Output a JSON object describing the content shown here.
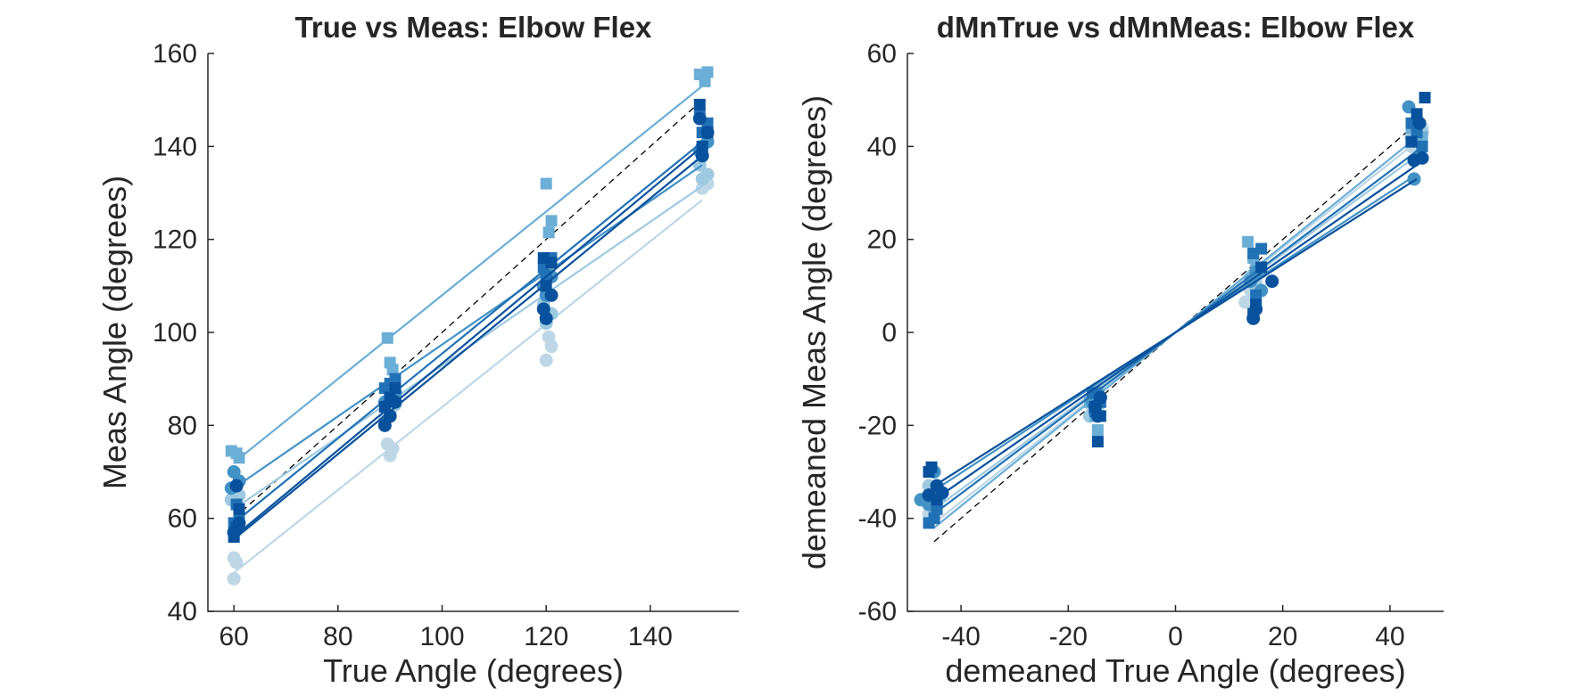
{
  "chart_data": [
    {
      "type": "scatter",
      "title": "True vs Meas: Elbow Flex",
      "xlabel": "True Angle (degrees)",
      "ylabel": "Meas Angle (degrees)",
      "xlim": [
        55,
        157
      ],
      "ylim": [
        40,
        160
      ],
      "xticks": [
        60,
        80,
        100,
        120,
        140
      ],
      "yticks": [
        40,
        60,
        80,
        100,
        120,
        140,
        160
      ],
      "grid": false,
      "reference_line": {
        "style": "dashed",
        "color": "#000000",
        "from": [
          60,
          60
        ],
        "to": [
          150,
          150
        ]
      },
      "series": [
        {
          "color": "#bdd7e7",
          "marker": "circle",
          "points": [
            [
              60,
              47
            ],
            [
              60.5,
              50.5
            ],
            [
              60,
              51.5
            ],
            [
              90,
              73.5
            ],
            [
              90.5,
              75
            ],
            [
              89.5,
              76
            ],
            [
              120,
              94
            ],
            [
              121,
              97
            ],
            [
              120.5,
              99
            ],
            [
              150,
              131
            ],
            [
              151,
              132
            ],
            [
              150.5,
              133
            ]
          ],
          "fit": [
            [
              60,
              48.3
            ],
            [
              150,
              128.5
            ]
          ]
        },
        {
          "color": "#9ecae1",
          "marker": "circle",
          "points": [
            [
              59.5,
              64
            ],
            [
              61,
              65
            ],
            [
              60,
              66
            ],
            [
              89,
              81
            ],
            [
              90,
              83
            ],
            [
              91,
              84.5
            ],
            [
              120,
              102
            ],
            [
              121,
              104
            ],
            [
              119.5,
              106
            ],
            [
              150,
              133
            ],
            [
              151,
              134
            ],
            [
              149.5,
              136
            ]
          ],
          "fit": [
            [
              60,
              62
            ],
            [
              150,
              131.5
            ]
          ]
        },
        {
          "color": "#6baed6",
          "marker": "square",
          "points": [
            [
              59.5,
              74.5
            ],
            [
              60.5,
              74
            ],
            [
              61,
              73
            ],
            [
              89.5,
              98.8
            ],
            [
              90,
              93.5
            ],
            [
              90.5,
              92
            ],
            [
              120,
              132
            ],
            [
              121,
              124
            ],
            [
              120.5,
              121.5
            ],
            [
              149.5,
              155.5
            ],
            [
              151,
              156
            ],
            [
              150.5,
              154
            ]
          ],
          "fit": [
            [
              60,
              72
            ],
            [
              150,
              153
            ]
          ]
        },
        {
          "color": "#4292c6",
          "marker": "circle",
          "points": [
            [
              60,
              70
            ],
            [
              61,
              68
            ],
            [
              59.5,
              66.5
            ],
            [
              89,
              85
            ],
            [
              90,
              86
            ],
            [
              91,
              87
            ],
            [
              120,
              108
            ],
            [
              119.5,
              110
            ],
            [
              121,
              112
            ],
            [
              150,
              140
            ],
            [
              151,
              141
            ],
            [
              149.5,
              139
            ]
          ],
          "fit": [
            [
              60,
              66.5
            ],
            [
              150,
              136
            ]
          ]
        },
        {
          "color": "#2171b5",
          "marker": "square",
          "points": [
            [
              60,
              59
            ],
            [
              61,
              61
            ],
            [
              60.5,
              63
            ],
            [
              89,
              88
            ],
            [
              90,
              89
            ],
            [
              91,
              90
            ],
            [
              120,
              112
            ],
            [
              119.5,
              114
            ],
            [
              121,
              116
            ],
            [
              150,
              143
            ],
            [
              151,
              145
            ],
            [
              149.5,
              147
            ]
          ],
          "fit": [
            [
              60,
              59
            ],
            [
              150,
              141
            ]
          ]
        },
        {
          "color": "#08519c",
          "marker": "square",
          "points": [
            [
              60,
              56
            ],
            [
              60.5,
              58
            ],
            [
              61,
              62
            ],
            [
              89,
              84
            ],
            [
              90,
              86
            ],
            [
              91,
              88
            ],
            [
              120,
              110
            ],
            [
              119.5,
              116
            ],
            [
              121,
              115
            ],
            [
              150,
              140
            ],
            [
              151,
              143
            ],
            [
              149.5,
              149
            ]
          ],
          "fit": [
            [
              60,
              56
            ],
            [
              150,
              140
            ]
          ]
        },
        {
          "color": "#08519c",
          "marker": "circle",
          "points": [
            [
              60,
              57
            ],
            [
              61,
              59
            ],
            [
              60.5,
              67
            ],
            [
              89,
              80
            ],
            [
              90,
              82
            ],
            [
              91,
              85
            ],
            [
              120,
              103
            ],
            [
              119.5,
              105
            ],
            [
              121,
              108
            ],
            [
              150,
              138
            ],
            [
              151,
              143
            ],
            [
              149.5,
              146
            ]
          ],
          "fit": [
            [
              60,
              55.5
            ],
            [
              150,
              138
            ]
          ]
        }
      ]
    },
    {
      "type": "scatter",
      "title": "dMnTrue vs dMnMeas: Elbow Flex",
      "xlabel": "demeaned True Angle (degrees)",
      "ylabel": "demeaned Meas Angle (degrees)",
      "xlim": [
        -50,
        50
      ],
      "ylim": [
        -60,
        60
      ],
      "xticks": [
        -40,
        -20,
        0,
        20,
        40
      ],
      "yticks": [
        -60,
        -40,
        -20,
        0,
        20,
        40,
        60
      ],
      "grid": false,
      "reference_line": {
        "style": "dashed",
        "color": "#000000",
        "from": [
          -45,
          -45
        ],
        "to": [
          45,
          45
        ]
      },
      "series": [
        {
          "color": "#bdd7e7",
          "marker": "circle",
          "points": [
            [
              -46,
              -39
            ],
            [
              -44.5,
              -37
            ],
            [
              -45,
              -34
            ],
            [
              -15,
              -14
            ],
            [
              -14.5,
              -12
            ],
            [
              -15.5,
              -16
            ],
            [
              13,
              6.5
            ],
            [
              14,
              9
            ],
            [
              15,
              11
            ],
            [
              44,
              40
            ],
            [
              45,
              42
            ],
            [
              46,
              44
            ]
          ],
          "fit": [
            [
              -45,
              -41
            ],
            [
              45,
              41
            ]
          ]
        },
        {
          "color": "#9ecae1",
          "marker": "circle",
          "points": [
            [
              -47,
              -36
            ],
            [
              -45.5,
              -35
            ],
            [
              -46,
              -33
            ],
            [
              -16,
              -18
            ],
            [
              -15,
              -14
            ],
            [
              -14.5,
              -16
            ],
            [
              14,
              12
            ],
            [
              15,
              10
            ],
            [
              16,
              13
            ],
            [
              44,
              42
            ],
            [
              45,
              44
            ],
            [
              46,
              43
            ]
          ],
          "fit": [
            [
              -45,
              -38
            ],
            [
              45,
              38
            ]
          ]
        },
        {
          "color": "#6baed6",
          "marker": "square",
          "points": [
            [
              -46,
              -36
            ],
            [
              -45,
              -38
            ],
            [
              -44,
              -35
            ],
            [
              -15,
              -18
            ],
            [
              -14.5,
              -21
            ],
            [
              -16,
              -15
            ],
            [
              13.5,
              19.5
            ],
            [
              15,
              14
            ],
            [
              14.5,
              16
            ],
            [
              44,
              44
            ],
            [
              45,
              45
            ],
            [
              46,
              42
            ]
          ],
          "fit": [
            [
              -45,
              -42
            ],
            [
              45,
              42
            ]
          ]
        },
        {
          "color": "#4292c6",
          "marker": "circle",
          "points": [
            [
              -47.5,
              -36
            ],
            [
              -46,
              -37
            ],
            [
              -45,
              -30
            ],
            [
              -15.5,
              -15
            ],
            [
              -14.5,
              -13
            ],
            [
              -15,
              -17
            ],
            [
              14,
              11
            ],
            [
              15,
              13
            ],
            [
              16,
              9
            ],
            [
              43.5,
              48.5
            ],
            [
              44.5,
              33
            ],
            [
              45.5,
              38
            ]
          ],
          "fit": [
            [
              -45,
              -34
            ],
            [
              45,
              34
            ]
          ]
        },
        {
          "color": "#2171b5",
          "marker": "square",
          "points": [
            [
              -46,
              -41
            ],
            [
              -45,
              -40
            ],
            [
              -44.5,
              -38
            ],
            [
              -15,
              -17
            ],
            [
              -14,
              -15
            ],
            [
              -15.5,
              -13
            ],
            [
              14.5,
              17
            ],
            [
              16,
              18
            ],
            [
              15,
              8
            ],
            [
              44,
              45
            ],
            [
              45,
              43
            ],
            [
              46,
              40
            ]
          ],
          "fit": [
            [
              -45,
              -39
            ],
            [
              45,
              39
            ]
          ]
        },
        {
          "color": "#08519c",
          "marker": "square",
          "points": [
            [
              -46,
              -30
            ],
            [
              -45.5,
              -29
            ],
            [
              -44.5,
              -36
            ],
            [
              -15,
              -16
            ],
            [
              -14.5,
              -23.5
            ],
            [
              -14,
              -18
            ],
            [
              14.5,
              4
            ],
            [
              15,
              6
            ],
            [
              16,
              14
            ],
            [
              44,
              41
            ],
            [
              45,
              47
            ],
            [
              46.5,
              50.5
            ]
          ],
          "fit": [
            [
              -45,
              -36
            ],
            [
              45,
              36
            ]
          ]
        },
        {
          "color": "#08519c",
          "marker": "circle",
          "points": [
            [
              -46,
              -35
            ],
            [
              -44.5,
              -33
            ],
            [
              -43.5,
              -34.5
            ],
            [
              -14.5,
              -18
            ],
            [
              -15,
              -16
            ],
            [
              -14,
              -14
            ],
            [
              14.5,
              3
            ],
            [
              15,
              5
            ],
            [
              18,
              11
            ],
            [
              44.5,
              37
            ],
            [
              45.5,
              45
            ],
            [
              46,
              37.5
            ]
          ],
          "fit": [
            [
              -45,
              -33
            ],
            [
              45,
              33
            ]
          ]
        }
      ]
    }
  ]
}
